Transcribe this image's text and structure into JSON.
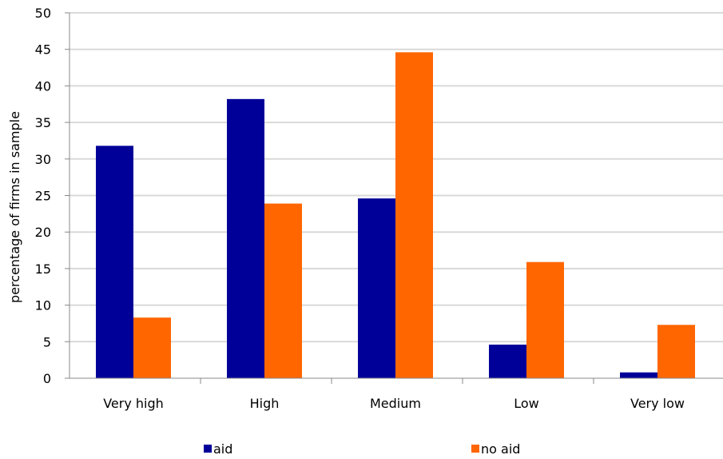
{
  "chart_data": {
    "type": "bar",
    "categories": [
      "Very high",
      "High",
      "Medium",
      "Low",
      "Very low"
    ],
    "series": [
      {
        "name": "aid",
        "color": "#000099",
        "values": [
          31.8,
          38.2,
          24.6,
          4.6,
          0.8
        ]
      },
      {
        "name": "no aid",
        "color": "#FF6600",
        "values": [
          8.3,
          23.9,
          44.6,
          15.9,
          7.3
        ]
      }
    ],
    "title": "",
    "xlabel": "",
    "ylabel": "percentage of firms in sample",
    "ylim": [
      0,
      50
    ],
    "yticks": [
      0,
      5,
      10,
      15,
      20,
      25,
      30,
      35,
      40,
      45,
      50
    ],
    "grid": true,
    "legend_position": "bottom"
  }
}
